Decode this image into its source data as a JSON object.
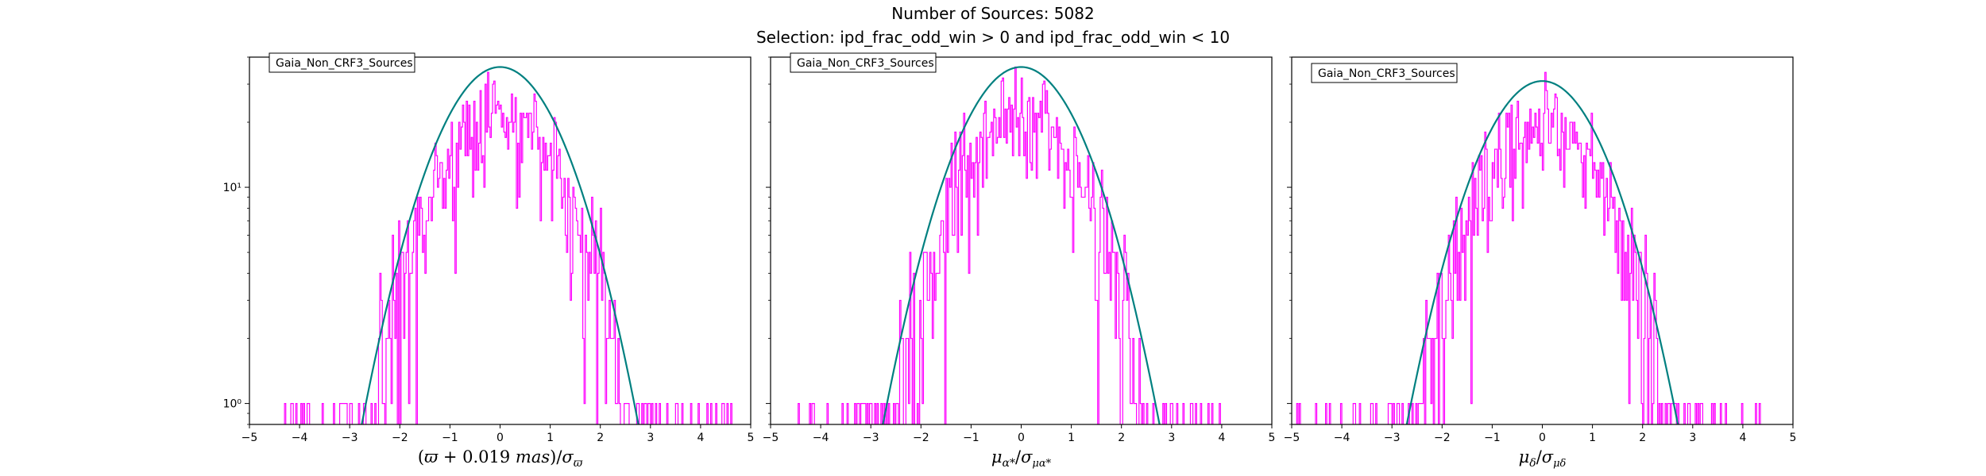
{
  "figure": {
    "title_line1": "Number of Sources: 5082",
    "title_line2": "Selection: ipd_frac_odd_win > 0 and ipd_frac_odd_win < 10"
  },
  "colors": {
    "histogram": "#ff00ff",
    "gaussian": "#008080",
    "frame": "#000000"
  },
  "chart_data": [
    {
      "type": "histogram",
      "xlabel": "(ϖ + 0.019 mas)/σϖ",
      "legend": "Gaia_Non_CRF3_Sources",
      "legend_placement": "top-left",
      "xlim": [
        -5,
        5
      ],
      "ylim": [
        0.8,
        40
      ],
      "yscale": "log",
      "xticks": [
        "−5",
        "−4",
        "−3",
        "−2",
        "−1",
        "0",
        "1",
        "2",
        "3",
        "4",
        "5"
      ],
      "yticks": [
        {
          "value": 1,
          "label": "10⁰"
        },
        {
          "value": 10,
          "label": "10¹"
        }
      ],
      "gaussian_peak": 36,
      "gaussian_center": 0,
      "data_range": [
        -4.3,
        4.65
      ],
      "seed": 11
    },
    {
      "type": "histogram",
      "xlabel": "μα*/σμα*",
      "legend": "Gaia_Non_CRF3_Sources",
      "legend_placement": "top-left",
      "xlim": [
        -5,
        5
      ],
      "ylim": [
        0.8,
        40
      ],
      "yscale": "log",
      "xticks": [
        "−5",
        "−4",
        "−3",
        "−2",
        "−1",
        "0",
        "1",
        "2",
        "3",
        "4",
        "5"
      ],
      "yticks": [
        {
          "value": 1,
          "label": "10⁰"
        },
        {
          "value": 10,
          "label": "10¹"
        }
      ],
      "gaussian_peak": 36,
      "gaussian_center": 0,
      "data_range": [
        -4.55,
        4.0
      ],
      "seed": 23
    },
    {
      "type": "histogram",
      "xlabel": "μδ/σμδ",
      "legend": "Gaia_Non_CRF3_Sources",
      "legend_placement": "top-left",
      "xlim": [
        -5,
        5
      ],
      "ylim": [
        0.8,
        40
      ],
      "yscale": "log",
      "xticks": [
        "−5",
        "−4",
        "−3",
        "−2",
        "−1",
        "0",
        "1",
        "2",
        "3",
        "4",
        "5"
      ],
      "yticks": [
        {
          "value": 1,
          "label": "10⁰"
        },
        {
          "value": 10,
          "label": "10¹"
        }
      ],
      "gaussian_peak": 31,
      "gaussian_center": 0,
      "data_range": [
        -4.9,
        4.35
      ],
      "seed": 37
    }
  ]
}
